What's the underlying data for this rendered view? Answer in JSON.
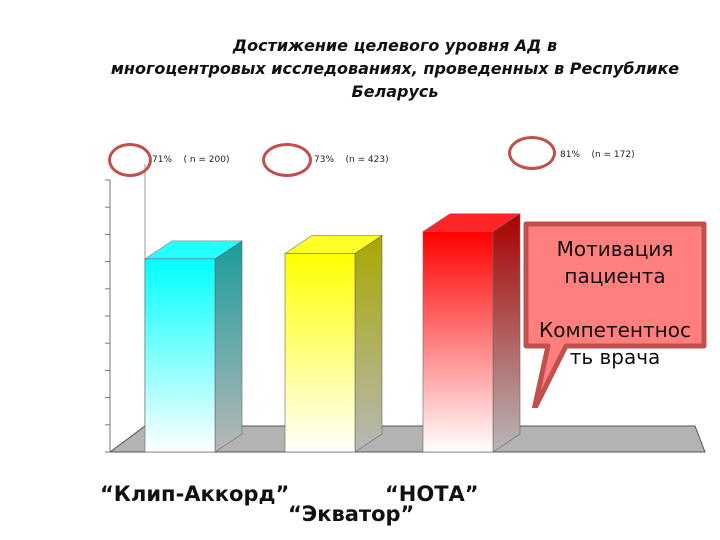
{
  "title": {
    "line1": "Достижение целевого уровня АД                              в",
    "line2": "многоцентровых исследованиях, проведенных в Республике Беларусь"
  },
  "chart_data": {
    "type": "bar",
    "categories": [
      "“Клип-Аккорд”",
      "“Экватор”",
      "“НОТА”"
    ],
    "values": [
      71,
      73,
      81
    ],
    "annotations": [
      "71%    ( n = 200)",
      "73%    (n = 423)",
      "81%    (n = 172)"
    ],
    "series": [
      {
        "values": [
          71,
          73,
          81
        ]
      }
    ],
    "bar_colors": [
      "#00ffff",
      "#ffff00",
      "#ff0000"
    ],
    "ylim": [
      0,
      100
    ],
    "grid": false,
    "style": "3d"
  },
  "callout": {
    "line1": "Мотивация",
    "line2": "пациента",
    "line3": "",
    "line4": "Компетентнос",
    "line5": "ть врача",
    "fill": "#ff7f7f",
    "border": "#c0504d"
  }
}
